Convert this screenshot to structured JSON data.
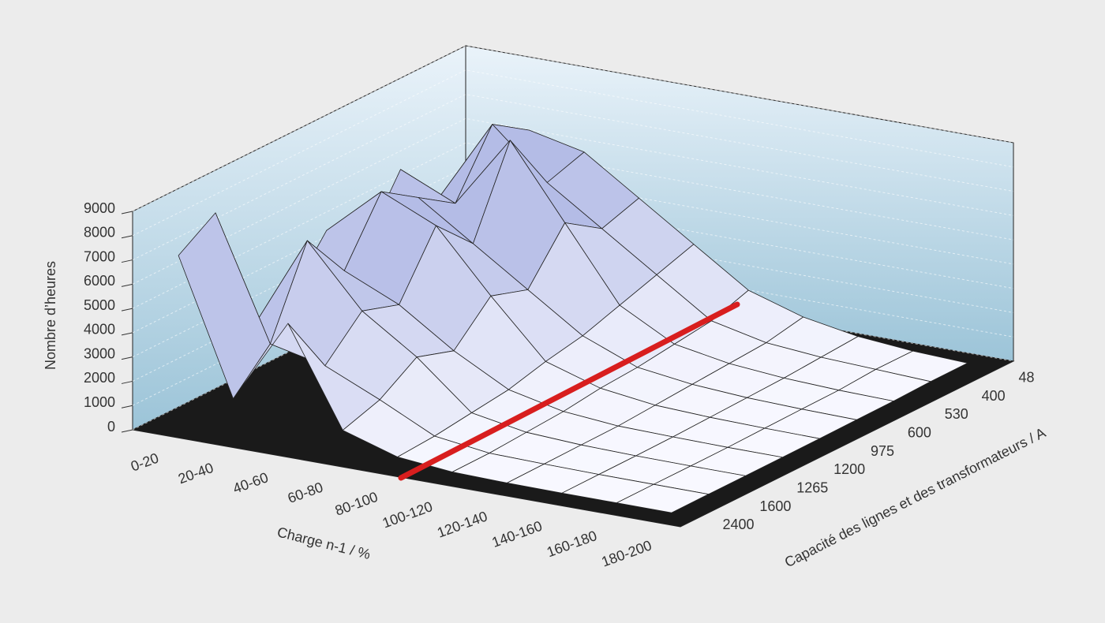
{
  "chart_data": {
    "type": "surface3d",
    "x_label": "Charge n-1 / %",
    "y_label": "Capacité des lignes et des transformateurs / A",
    "z_label": "Nombre d’heures",
    "categories": [
      "0-20",
      "20-40",
      "40-60",
      "60-80",
      "80-100",
      "100-120",
      "120-140",
      "140-160",
      "160-180",
      "180-200"
    ],
    "y_categories": [
      "48",
      "400",
      "530",
      "600",
      "975",
      "1200",
      "1265",
      "1600",
      "2400"
    ],
    "values": [
      [
        5000,
        6500,
        6000,
        4500,
        3000,
        1500,
        800,
        400,
        200,
        100
      ],
      [
        4000,
        7500,
        5500,
        4000,
        2500,
        1000,
        500,
        300,
        200,
        100
      ],
      [
        6000,
        5000,
        8000,
        5000,
        2000,
        800,
        400,
        200,
        100,
        50
      ],
      [
        3500,
        6000,
        4500,
        3000,
        1500,
        600,
        300,
        150,
        80,
        40
      ],
      [
        5000,
        7000,
        6000,
        3500,
        1200,
        500,
        200,
        100,
        50,
        20
      ],
      [
        3000,
        4500,
        3500,
        2000,
        800,
        300,
        100,
        50,
        20,
        10
      ],
      [
        2500,
        6500,
        4000,
        2500,
        600,
        200,
        80,
        30,
        10,
        5
      ],
      [
        8000,
        3000,
        2500,
        1500,
        400,
        100,
        50,
        20,
        10,
        5
      ],
      [
        7000,
        1500,
        5000,
        1000,
        300,
        80,
        30,
        10,
        5,
        0
      ]
    ],
    "color": "#b4bce6",
    "zlim": [
      0,
      9000
    ],
    "zticks": [
      0,
      1000,
      2000,
      3000,
      4000,
      5000,
      6000,
      7000,
      8000,
      9000
    ],
    "grid": true
  }
}
